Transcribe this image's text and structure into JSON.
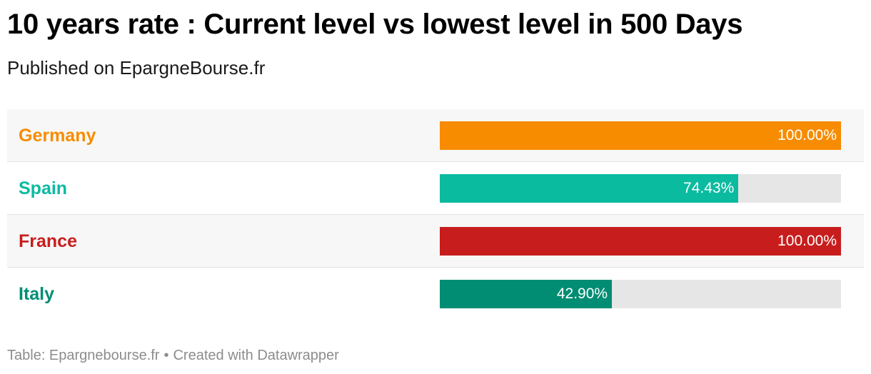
{
  "header": {
    "title": "10 years rate : Current level vs lowest level in 500 Days",
    "subtitle": "Published on EpargneBourse.fr"
  },
  "chart_data": {
    "type": "bar",
    "categories": [
      "Germany",
      "Spain",
      "France",
      "Italy"
    ],
    "values": [
      100.0,
      74.43,
      100.0,
      42.9
    ],
    "value_labels": [
      "100.00%",
      "74.43%",
      "100.00%",
      "42.90%"
    ],
    "colors": [
      "#f78c00",
      "#0bbba0",
      "#c71e1d",
      "#008d73"
    ],
    "xlim": [
      0,
      100
    ],
    "title": "10 years rate : Current level vs lowest level in 500 Days"
  },
  "footer": {
    "source": "Table: Epargnebourse.fr",
    "separator": "•",
    "credit": "Created with Datawrapper"
  },
  "colors": {
    "track": "#e6e6e6",
    "row_shade": "#f7f7f7"
  }
}
